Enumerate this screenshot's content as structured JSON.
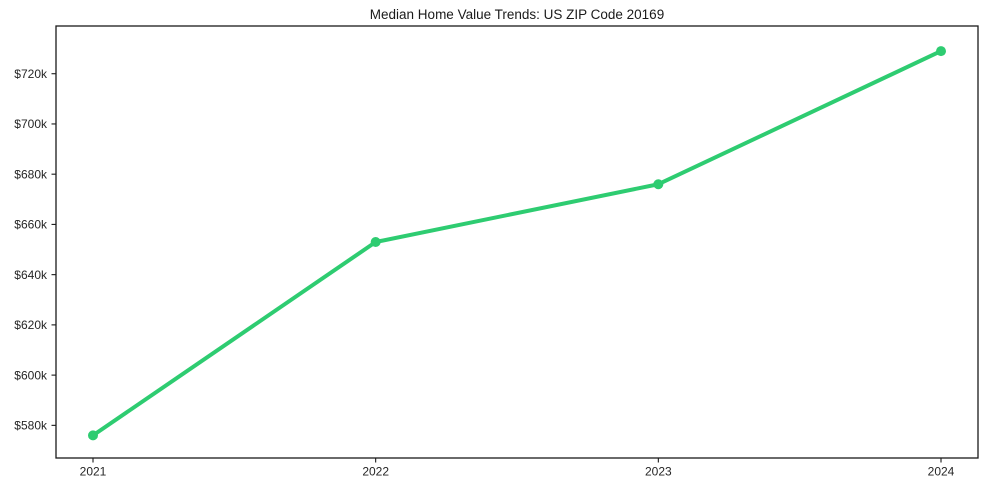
{
  "chart_data": {
    "type": "line",
    "title": "Median Home Value Trends: US ZIP Code 20169",
    "xlabel": "",
    "ylabel": "",
    "categories": [
      "2021",
      "2022",
      "2023",
      "2024"
    ],
    "values": [
      576,
      653,
      676,
      729
    ],
    "unit": "USD thousands",
    "value_labels": [
      "$576k",
      "$653k",
      "$676k",
      "$729k"
    ],
    "y_ticks": [
      {
        "value": 580,
        "label": "$580k"
      },
      {
        "value": 600,
        "label": "$600k"
      },
      {
        "value": 620,
        "label": "$620k"
      },
      {
        "value": 640,
        "label": "$640k"
      },
      {
        "value": 660,
        "label": "$660k"
      },
      {
        "value": 680,
        "label": "$680k"
      },
      {
        "value": 700,
        "label": "$700k"
      },
      {
        "value": 720,
        "label": "$720k"
      }
    ],
    "ylim": [
      567,
      739
    ],
    "grid": false,
    "legend": "none",
    "marker": "circle",
    "line_color": "#2ecc71",
    "axis_color": "#1a1a1a",
    "tick_label_color": "#262626",
    "background_color": "#ffffff"
  }
}
